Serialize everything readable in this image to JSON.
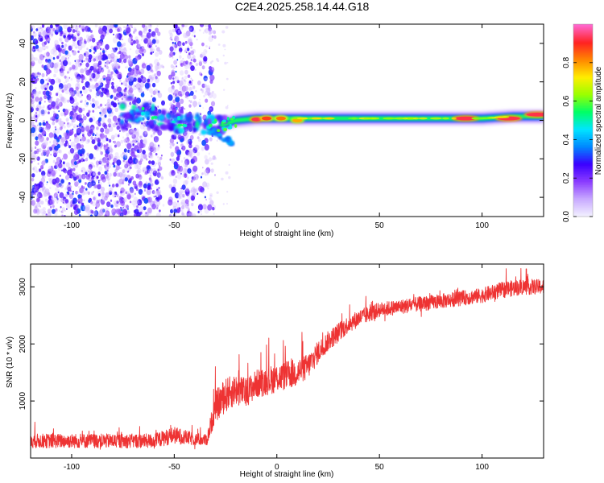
{
  "chart_data": [
    {
      "type": "heatmap",
      "title": "C2E4.2025.258.14.44.G18",
      "xlabel": "Height of straight line (km)",
      "ylabel": "Frequency (Hz)",
      "xlim": [
        -120,
        130
      ],
      "ylim": [
        -50,
        50
      ],
      "xticks": [
        -100,
        -50,
        0,
        50,
        100
      ],
      "yticks": [
        -40,
        -20,
        0,
        20,
        40
      ],
      "colorbar": {
        "label": "Normalized spectral amplitude",
        "range": [
          0,
          1
        ],
        "ticks": [
          "0.0",
          "0.2",
          "0.4",
          "0.6",
          "0.8"
        ],
        "tick_values": [
          0,
          0.2,
          0.4,
          0.6,
          0.8
        ],
        "colors": [
          "#f2f0ff",
          "#c7a8ff",
          "#8a3bff",
          "#3a00ff",
          "#0088ff",
          "#00e5ff",
          "#00ff66",
          "#99ff00",
          "#ffee00",
          "#ff8800",
          "#ff2222",
          "#ff66cc"
        ]
      },
      "ridge": {
        "x": [
          -72,
          -65,
          -58,
          -50,
          -42,
          -35,
          -28,
          -20,
          -10,
          0,
          20,
          50,
          80,
          100,
          115,
          130
        ],
        "y": [
          6,
          4,
          0,
          -2,
          0,
          -2,
          -3,
          0,
          1,
          1,
          1,
          1,
          1,
          1,
          2,
          2
        ]
      },
      "peaks": [
        {
          "x": -10,
          "y": 0.5,
          "amp": 1.0
        },
        {
          "x": -5,
          "y": 1,
          "amp": 0.95
        },
        {
          "x": 2,
          "y": 1,
          "amp": 0.9
        },
        {
          "x": 10,
          "y": 0,
          "amp": 0.85
        },
        {
          "x": 92,
          "y": 1,
          "amp": 1.0
        },
        {
          "x": 113,
          "y": 1,
          "amp": 1.0
        },
        {
          "x": 127,
          "y": 3,
          "amp": 1.0
        }
      ]
    },
    {
      "type": "line",
      "title": "",
      "xlabel": "Height of straight line (km)",
      "ylabel": "SNR (10 * v/v)",
      "xlim": [
        -120,
        130
      ],
      "ylim": [
        0,
        3400
      ],
      "xticks": [
        -100,
        -50,
        0,
        50,
        100
      ],
      "yticks": [
        1000,
        2000,
        3000
      ],
      "color": "#ee3333",
      "series": [
        {
          "name": "SNR",
          "x": [
            -120,
            -60,
            -50,
            -40,
            -34,
            -30,
            -25,
            -20,
            -15,
            -10,
            -5,
            0,
            5,
            10,
            15,
            20,
            25,
            30,
            35,
            40,
            50,
            60,
            70,
            80,
            90,
            100,
            110,
            120,
            130
          ],
          "y": [
            300,
            300,
            400,
            330,
            320,
            900,
            1100,
            1200,
            1150,
            1300,
            1350,
            1400,
            1450,
            1500,
            1600,
            1850,
            2050,
            2200,
            2350,
            2450,
            2600,
            2650,
            2700,
            2750,
            2800,
            2850,
            2950,
            3000,
            3000
          ],
          "noise": [
            250,
            250,
            300,
            220,
            200,
            550,
            600,
            550,
            500,
            500,
            500,
            500,
            500,
            500,
            450,
            400,
            350,
            350,
            300,
            300,
            260,
            260,
            260,
            260,
            260,
            260,
            280,
            280,
            260
          ]
        }
      ]
    }
  ]
}
